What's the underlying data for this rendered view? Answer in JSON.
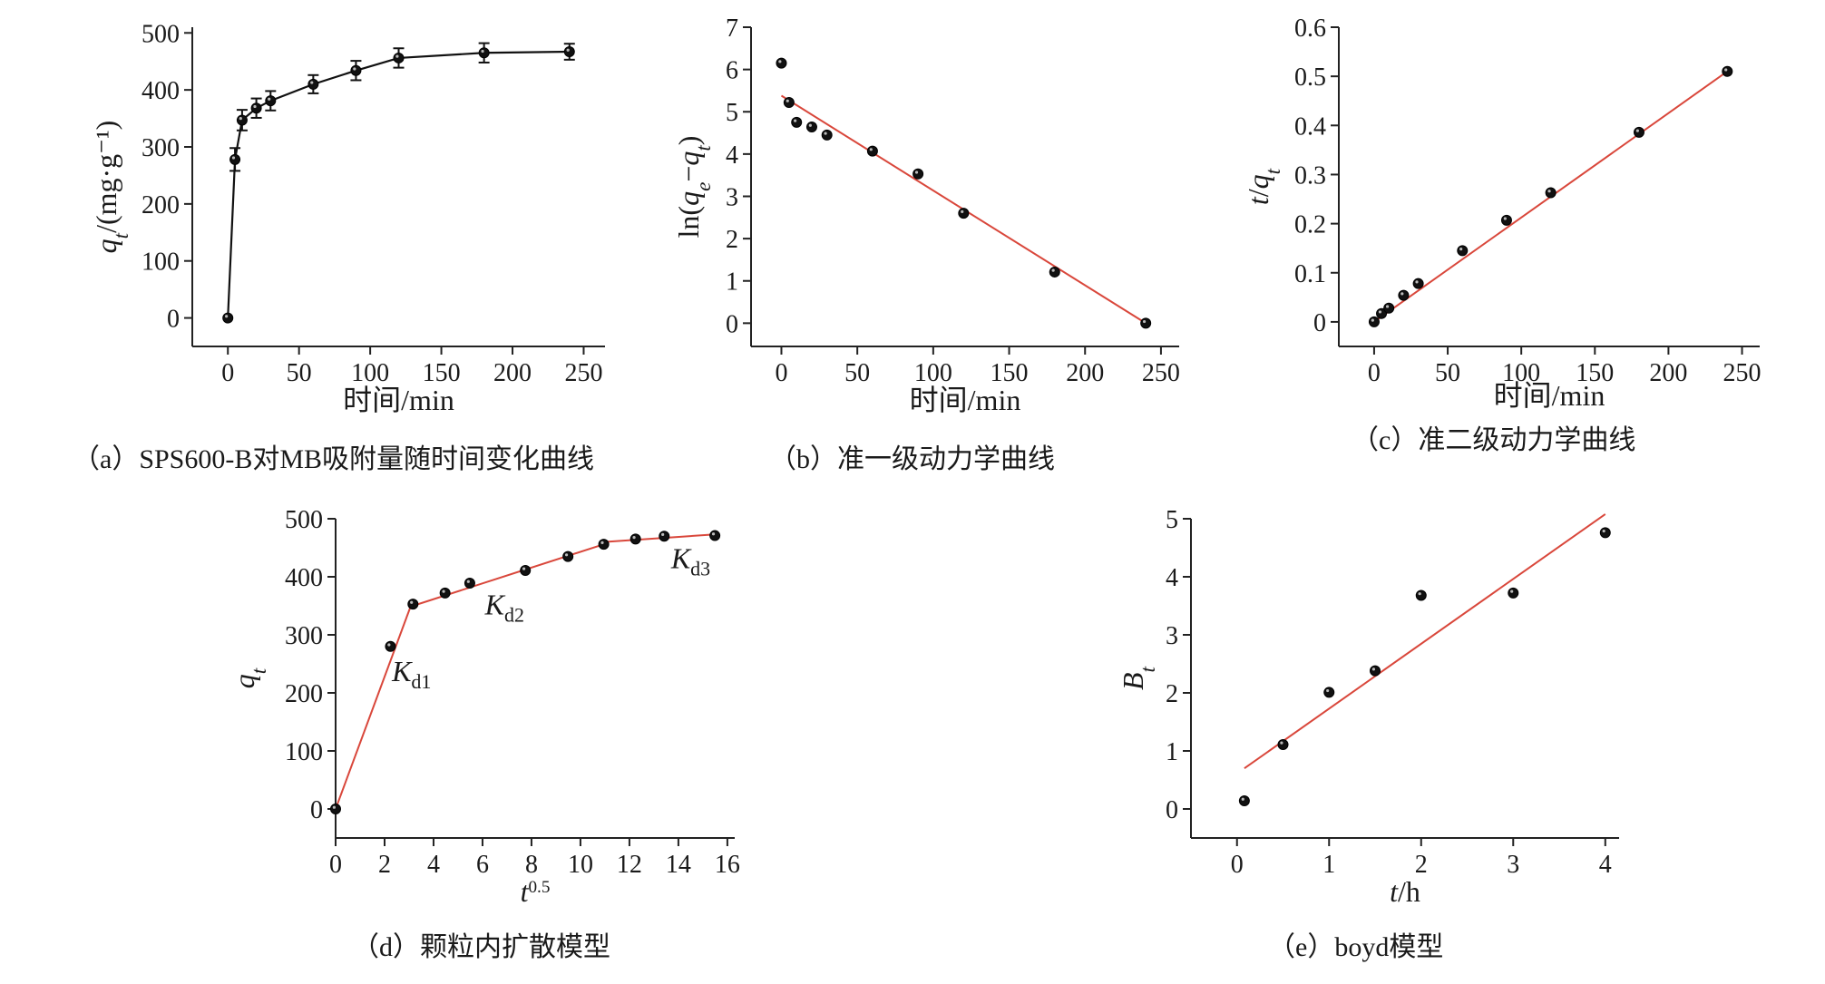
{
  "chart_data": [
    {
      "id": "a",
      "type": "line",
      "caption": "（a）SPS600-B对MB吸附量随时间变化曲线",
      "xlabel": "时间/min",
      "ylabel": "q_t/(mg·g⁻¹)",
      "xlim": [
        -25,
        265
      ],
      "ylim": [
        -50,
        510
      ],
      "xticks": [
        0,
        50,
        100,
        150,
        200,
        250
      ],
      "yticks": [
        0,
        100,
        200,
        300,
        400,
        500
      ],
      "series": [
        {
          "x": [
            0,
            5,
            10,
            20,
            30,
            60,
            90,
            120,
            180,
            240
          ],
          "y": [
            0,
            278,
            347,
            368,
            381,
            410,
            434,
            456,
            465,
            467
          ],
          "err": [
            0,
            20,
            18,
            17,
            17,
            16,
            17,
            17,
            17,
            14
          ]
        }
      ]
    },
    {
      "id": "b",
      "type": "scatter",
      "caption": "（b）准一级动力学曲线",
      "xlabel": "时间/min",
      "ylabel": "ln(q_e−q_t)",
      "xlim": [
        -20,
        262
      ],
      "ylim": [
        -0.55,
        7
      ],
      "xticks": [
        0,
        50,
        100,
        150,
        200,
        250
      ],
      "yticks": [
        0,
        1,
        2,
        3,
        4,
        5,
        6,
        7
      ],
      "series": [
        {
          "x": [
            0,
            5,
            10,
            20,
            30,
            60,
            90,
            120,
            180,
            240
          ],
          "y": [
            6.15,
            5.22,
            4.75,
            4.64,
            4.45,
            4.07,
            3.53,
            2.6,
            1.21,
            0
          ]
        }
      ],
      "fit": {
        "x": [
          0,
          240
        ],
        "y": [
          5.38,
          0
        ]
      }
    },
    {
      "id": "c",
      "type": "scatter",
      "caption": "（c）准二级动力学曲线",
      "xlabel": "时间/min",
      "ylabel": "t/q_t",
      "xlim": [
        -24,
        262
      ],
      "ylim": [
        -0.05,
        0.6
      ],
      "xticks": [
        0,
        50,
        100,
        150,
        200,
        250
      ],
      "yticks": [
        0,
        0.1,
        0.2,
        0.3,
        0.4,
        0.5,
        0.6
      ],
      "series": [
        {
          "x": [
            0,
            5,
            10,
            20,
            30,
            60,
            90,
            120,
            180,
            240
          ],
          "y": [
            0,
            0.017,
            0.028,
            0.054,
            0.078,
            0.145,
            0.207,
            0.263,
            0.386,
            0.51
          ]
        }
      ],
      "fit": {
        "x": [
          0,
          240
        ],
        "y": [
          0,
          0.51
        ]
      }
    },
    {
      "id": "d",
      "type": "scatter",
      "caption": "（d）颗粒内扩散模型",
      "xlabel": "t^0.5",
      "ylabel": "q_t",
      "xlim": [
        0,
        16.3
      ],
      "ylim": [
        -50,
        500
      ],
      "xticks": [
        0,
        2,
        4,
        6,
        8,
        10,
        12,
        14,
        16
      ],
      "yticks": [
        0,
        100,
        200,
        300,
        400,
        500
      ],
      "series": [
        {
          "x": [
            0,
            2.24,
            3.16,
            4.47,
            5.48,
            7.75,
            9.49,
            10.95,
            12.25,
            13.42,
            15.49
          ],
          "y": [
            0,
            280,
            353,
            372,
            389,
            411,
            435,
            456,
            465,
            470,
            471
          ]
        }
      ],
      "fit_segments": [
        {
          "x": [
            0,
            3.16
          ],
          "y": [
            0,
            360
          ]
        },
        {
          "x": [
            3.16,
            10.95
          ],
          "y": [
            350,
            456
          ]
        },
        {
          "x": [
            10.95,
            15.49
          ],
          "y": [
            460,
            473
          ]
        }
      ],
      "annotations": [
        {
          "text": "K",
          "sub": "d1",
          "x": 2.3,
          "y": 220
        },
        {
          "text": "K",
          "sub": "d2",
          "x": 6.1,
          "y": 335
        },
        {
          "text": "K",
          "sub": "d3",
          "x": 13.7,
          "y": 415
        }
      ]
    },
    {
      "id": "e",
      "type": "scatter",
      "caption": "（e）boyd模型",
      "xlabel": "t/h",
      "ylabel": "B_t",
      "xlim": [
        -0.5,
        4.15
      ],
      "ylim": [
        -0.5,
        5
      ],
      "xticks": [
        0,
        1,
        2,
        3,
        4
      ],
      "yticks": [
        0,
        1,
        2,
        3,
        4,
        5
      ],
      "series": [
        {
          "x": [
            0.08,
            0.5,
            1,
            1.5,
            2,
            3,
            4
          ],
          "y": [
            0.14,
            1.11,
            2.01,
            2.38,
            3.68,
            3.72,
            4.76
          ]
        }
      ],
      "fit": {
        "x": [
          0.08,
          4
        ],
        "y": [
          0.7,
          5.08
        ]
      }
    }
  ]
}
